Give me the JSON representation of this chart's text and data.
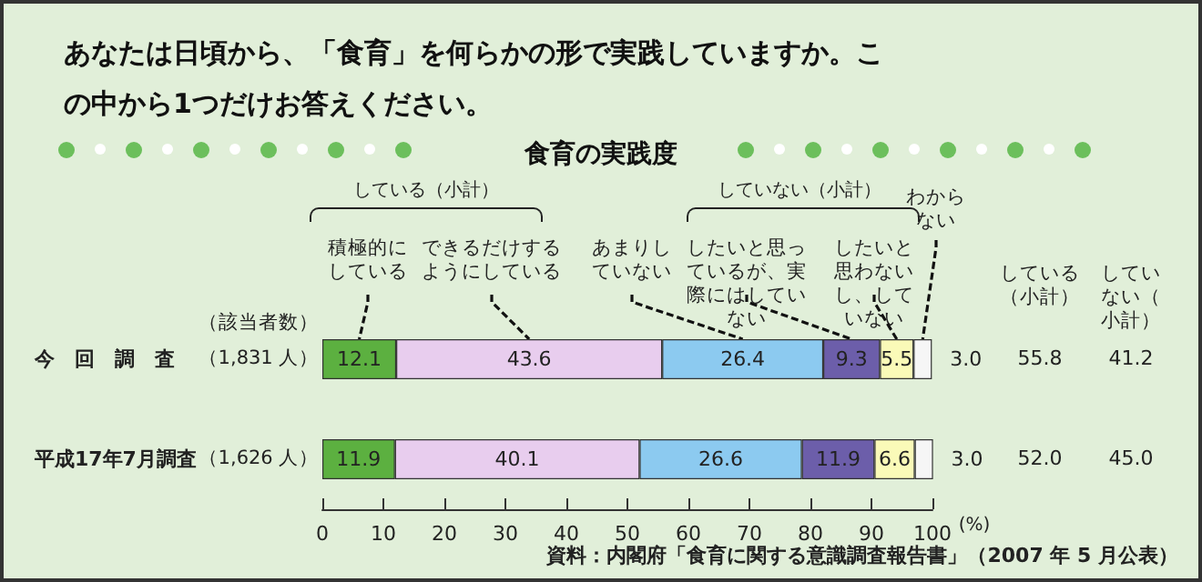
{
  "chart_data": {
    "type": "bar",
    "orientation": "horizontal",
    "stacked": true,
    "title": "あなたは日頃から、「食育」を何らかの形で実践していますか。この中から1つだけお答えください。",
    "subtitle": "食育の実践度",
    "xlabel": "(%)",
    "categories": [
      "今　回　調　査",
      "平成17年7月調査"
    ],
    "series": [
      {
        "name": "積極的にしている",
        "color": "#5cb040",
        "values": [
          12.1,
          11.9
        ],
        "value_labels": [
          "12.1",
          "11.9"
        ]
      },
      {
        "name": "できるだけするようにしている",
        "color": "#e8cdee",
        "values": [
          43.6,
          40.1
        ],
        "value_labels": [
          "43.6",
          "40.1"
        ]
      },
      {
        "name": "あまりしていない",
        "color": "#8ccaf0",
        "values": [
          26.4,
          26.6
        ],
        "value_labels": [
          "26.4",
          "26.6"
        ]
      },
      {
        "name": "したいと思っているが、実際にはしていない",
        "color": "#6c5eaa",
        "values": [
          9.3,
          11.9
        ],
        "value_labels": [
          "9.3",
          "11.9"
        ]
      },
      {
        "name": "したいと思わないし、していない",
        "color": "#fafab8",
        "values": [
          5.5,
          6.6
        ],
        "value_labels": [
          "5.5",
          "6.6"
        ]
      },
      {
        "name": "わからない",
        "color": "#f6f6f6",
        "values": [
          3.0,
          3.0
        ],
        "value_labels": [
          "3.0",
          "3.0"
        ]
      }
    ],
    "xlim": [
      0,
      100
    ],
    "xticks": [
      0,
      10,
      20,
      30,
      40,
      50,
      60,
      70,
      80,
      90,
      100
    ],
    "legend": false,
    "grid": false,
    "annotations": [
      "（該当者数）",
      "（1,831 人）",
      "（1,626 人）",
      "している（小計）",
      "していない（小計）",
      "している（小計）",
      "していない（小計）",
      "55.8",
      "52.0",
      "41.2",
      "45.0",
      "資料：内閣府「食育に関する意識調査報告書」（2007 年 5 月公表）"
    ]
  }
}
